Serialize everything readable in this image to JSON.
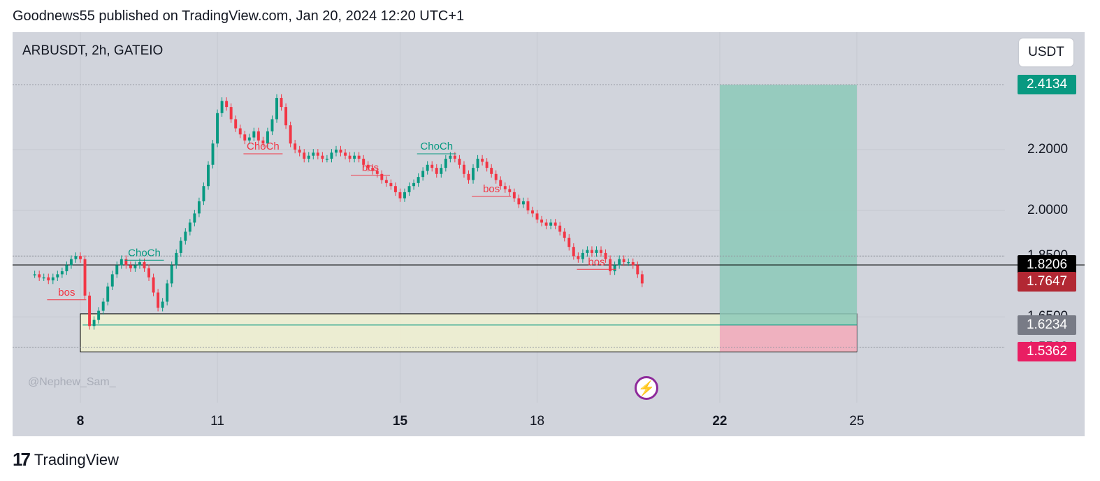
{
  "header": {
    "text": "Goodnews55 published on TradingView.com, Jan 20, 2024 12:20 UTC+1"
  },
  "symbol": {
    "label": "ARBUSDT, 2h, GATEIO"
  },
  "currency": {
    "label": "USDT"
  },
  "watermark": {
    "text": "@Nephew_Sam_"
  },
  "footer": {
    "brand": "TradingView",
    "logo_text": "17"
  },
  "icons": {
    "flash": "lightning-bolt-icon",
    "logo": "tradingview-logo-icon"
  },
  "colors": {
    "panel_bg": "#d1d4dc",
    "up": "#089981",
    "down": "#f23645",
    "target_zone": "#8cc9b9",
    "stop_zone": "#f0a6bc",
    "demand_zone": "#f1f1d0"
  },
  "chart_data": {
    "type": "candlestick",
    "symbol": "ARBUSDT",
    "timeframe": "2h",
    "exchange": "GATEIO",
    "x_ticks": [
      {
        "label": "8",
        "bold": true,
        "day": 8
      },
      {
        "label": "11",
        "bold": false,
        "day": 11
      },
      {
        "label": "15",
        "bold": true,
        "day": 15
      },
      {
        "label": "18",
        "bold": false,
        "day": 18
      },
      {
        "label": "22",
        "bold": true,
        "day": 22
      },
      {
        "label": "25",
        "bold": false,
        "day": 25
      }
    ],
    "y_ticks": [
      "2.2000",
      "2.0000",
      "1.8500",
      "1.6500",
      "1.5500"
    ],
    "y_range": [
      1.45,
      2.6
    ],
    "price_badges": [
      {
        "value": "2.4134",
        "color": "#089981"
      },
      {
        "value": "1.8206",
        "color": "#000000"
      },
      {
        "value": "1.7647",
        "color": "#b22833"
      },
      {
        "value": "1.6234",
        "color": "#787b86"
      },
      {
        "value": "1.5362",
        "color": "#e91e63"
      }
    ],
    "horizontal_line": 1.8206,
    "position": {
      "entry": 1.6234,
      "target": 2.4134,
      "stop": 1.5362,
      "from_day": 22.0,
      "to_day": 25.0
    },
    "demand_zone": {
      "top": 1.66,
      "bottom": 1.535,
      "from_day": 8.0,
      "to_day": 25.0
    },
    "annotations": [
      {
        "text": "bos",
        "day": 7.7,
        "price": 1.72,
        "color": "#f23645"
      },
      {
        "text": "ChoCh",
        "day": 9.4,
        "price": 1.85,
        "color": "#089981"
      },
      {
        "text": "ChoCh",
        "day": 12.0,
        "price": 2.2,
        "color": "#f23645"
      },
      {
        "text": "bos",
        "day": 14.35,
        "price": 2.13,
        "color": "#f23645"
      },
      {
        "text": "ChoCh",
        "day": 15.8,
        "price": 2.2,
        "color": "#089981"
      },
      {
        "text": "bos",
        "day": 17.0,
        "price": 2.06,
        "color": "#f23645"
      },
      {
        "text": "bos",
        "day": 19.3,
        "price": 1.82,
        "color": "#f23645"
      }
    ],
    "series": [
      {
        "name": "ARBUSDT",
        "points": [
          [
            7.0,
            1.79
          ],
          [
            7.1,
            1.78
          ],
          [
            7.2,
            1.78
          ],
          [
            7.3,
            1.77
          ],
          [
            7.4,
            1.78
          ],
          [
            7.5,
            1.79
          ],
          [
            7.6,
            1.8
          ],
          [
            7.7,
            1.82
          ],
          [
            7.8,
            1.84
          ],
          [
            7.9,
            1.85
          ],
          [
            8.0,
            1.84
          ],
          [
            8.1,
            1.72
          ],
          [
            8.2,
            1.62
          ],
          [
            8.3,
            1.64
          ],
          [
            8.4,
            1.67
          ],
          [
            8.5,
            1.7
          ],
          [
            8.6,
            1.75
          ],
          [
            8.7,
            1.79
          ],
          [
            8.8,
            1.82
          ],
          [
            8.9,
            1.84
          ],
          [
            9.0,
            1.82
          ],
          [
            9.1,
            1.81
          ],
          [
            9.2,
            1.82
          ],
          [
            9.3,
            1.83
          ],
          [
            9.4,
            1.81
          ],
          [
            9.5,
            1.78
          ],
          [
            9.6,
            1.73
          ],
          [
            9.7,
            1.68
          ],
          [
            9.8,
            1.7
          ],
          [
            9.9,
            1.76
          ],
          [
            10.0,
            1.82
          ],
          [
            10.1,
            1.86
          ],
          [
            10.2,
            1.9
          ],
          [
            10.3,
            1.93
          ],
          [
            10.4,
            1.96
          ],
          [
            10.5,
            1.99
          ],
          [
            10.6,
            2.03
          ],
          [
            10.7,
            2.08
          ],
          [
            10.8,
            2.15
          ],
          [
            10.9,
            2.22
          ],
          [
            11.0,
            2.32
          ],
          [
            11.1,
            2.36
          ],
          [
            11.2,
            2.34
          ],
          [
            11.3,
            2.3
          ],
          [
            11.4,
            2.27
          ],
          [
            11.5,
            2.25
          ],
          [
            11.6,
            2.23
          ],
          [
            11.7,
            2.24
          ],
          [
            11.8,
            2.26
          ],
          [
            11.9,
            2.23
          ],
          [
            12.0,
            2.22
          ],
          [
            12.1,
            2.26
          ],
          [
            12.2,
            2.3
          ],
          [
            12.3,
            2.37
          ],
          [
            12.4,
            2.34
          ],
          [
            12.5,
            2.28
          ],
          [
            12.6,
            2.22
          ],
          [
            12.7,
            2.2
          ],
          [
            12.8,
            2.19
          ],
          [
            12.9,
            2.17
          ],
          [
            13.0,
            2.18
          ],
          [
            13.1,
            2.19
          ],
          [
            13.2,
            2.18
          ],
          [
            13.3,
            2.17
          ],
          [
            13.4,
            2.17
          ],
          [
            13.5,
            2.19
          ],
          [
            13.6,
            2.2
          ],
          [
            13.7,
            2.19
          ],
          [
            13.8,
            2.18
          ],
          [
            13.9,
            2.17
          ],
          [
            14.0,
            2.18
          ],
          [
            14.1,
            2.17
          ],
          [
            14.2,
            2.15
          ],
          [
            14.3,
            2.14
          ],
          [
            14.4,
            2.13
          ],
          [
            14.5,
            2.12
          ],
          [
            14.6,
            2.1
          ],
          [
            14.7,
            2.09
          ],
          [
            14.8,
            2.08
          ],
          [
            14.9,
            2.06
          ],
          [
            15.0,
            2.04
          ],
          [
            15.1,
            2.06
          ],
          [
            15.2,
            2.08
          ],
          [
            15.3,
            2.09
          ],
          [
            15.4,
            2.11
          ],
          [
            15.5,
            2.13
          ],
          [
            15.6,
            2.15
          ],
          [
            15.7,
            2.14
          ],
          [
            15.8,
            2.12
          ],
          [
            15.9,
            2.14
          ],
          [
            16.0,
            2.17
          ],
          [
            16.1,
            2.18
          ],
          [
            16.2,
            2.17
          ],
          [
            16.3,
            2.15
          ],
          [
            16.4,
            2.12
          ],
          [
            16.5,
            2.1
          ],
          [
            16.6,
            2.14
          ],
          [
            16.7,
            2.17
          ],
          [
            16.8,
            2.16
          ],
          [
            16.9,
            2.14
          ],
          [
            17.0,
            2.12
          ],
          [
            17.1,
            2.1
          ],
          [
            17.2,
            2.08
          ],
          [
            17.3,
            2.07
          ],
          [
            17.4,
            2.06
          ],
          [
            17.5,
            2.04
          ],
          [
            17.6,
            2.02
          ],
          [
            17.7,
            2.03
          ],
          [
            17.8,
            2.0
          ],
          [
            17.9,
            1.99
          ],
          [
            18.0,
            1.97
          ],
          [
            18.1,
            1.96
          ],
          [
            18.2,
            1.95
          ],
          [
            18.3,
            1.96
          ],
          [
            18.4,
            1.95
          ],
          [
            18.5,
            1.93
          ],
          [
            18.6,
            1.91
          ],
          [
            18.7,
            1.88
          ],
          [
            18.8,
            1.85
          ],
          [
            18.9,
            1.84
          ],
          [
            19.0,
            1.86
          ],
          [
            19.1,
            1.87
          ],
          [
            19.2,
            1.86
          ],
          [
            19.3,
            1.87
          ],
          [
            19.4,
            1.86
          ],
          [
            19.5,
            1.84
          ],
          [
            19.6,
            1.8
          ],
          [
            19.7,
            1.82
          ],
          [
            19.8,
            1.84
          ],
          [
            19.9,
            1.83
          ],
          [
            20.0,
            1.83
          ],
          [
            20.1,
            1.82
          ],
          [
            20.2,
            1.79
          ],
          [
            20.3,
            1.76
          ]
        ]
      }
    ]
  }
}
